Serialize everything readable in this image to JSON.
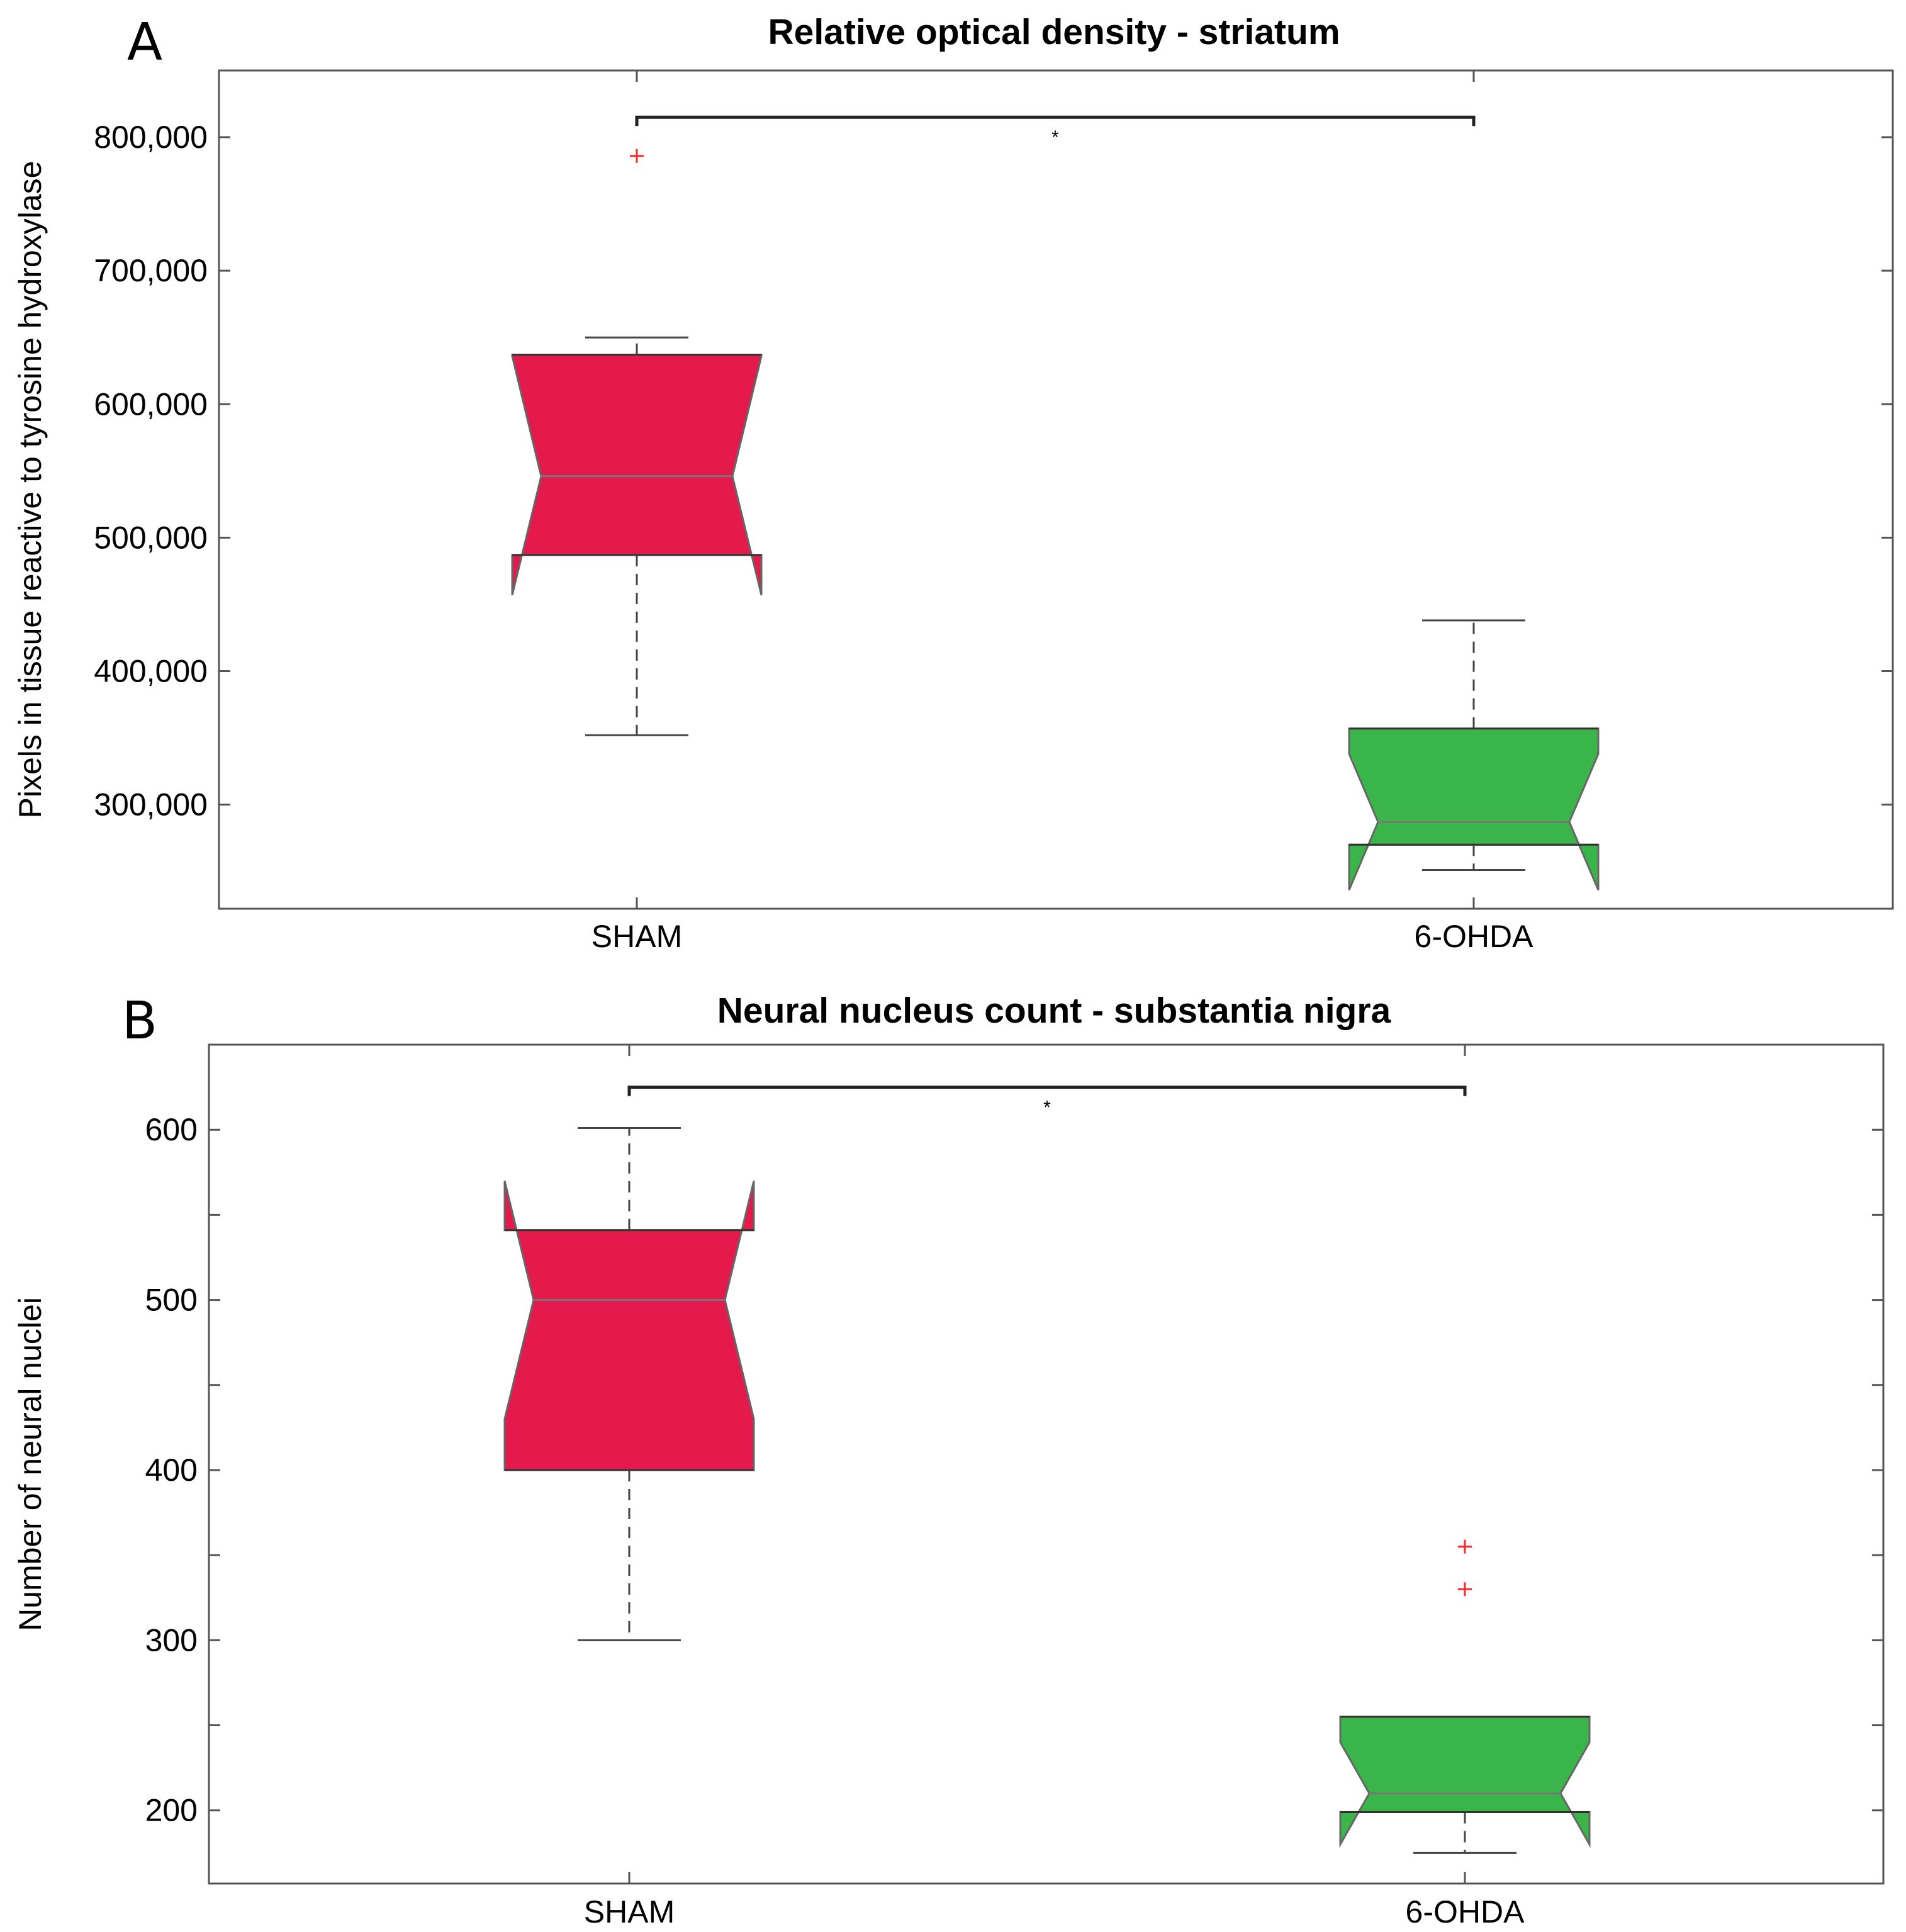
{
  "chart_data": [
    {
      "type": "box",
      "panel_label": "A",
      "title": "Relative optical density - striatum",
      "ylabel": "Pixels in tissue reactive to tyrosine hydroxylase",
      "xlabel": "",
      "ylim": [
        222000,
        850000
      ],
      "yticks": [
        300000,
        400000,
        500000,
        600000,
        700000,
        800000
      ],
      "ytick_labels": [
        "300,000",
        "400,000",
        "500,000",
        "600,000",
        "700,000",
        "800,000"
      ],
      "grid": false,
      "categories": [
        "SHAM",
        "6-OHDA"
      ],
      "boxes": [
        {
          "name": "SHAM",
          "color": "#e31a4b",
          "whisker_low": 352000,
          "q1": 487000,
          "notch_low": 457000,
          "median": 546000,
          "notch_high": 636000,
          "q3": 637000,
          "whisker_high": 650000,
          "outliers": [
            786000
          ]
        },
        {
          "name": "6-OHDA",
          "color": "#39b54a",
          "whisker_low": 251000,
          "q1": 270000,
          "notch_low": 236000,
          "median": 287000,
          "notch_high": 338000,
          "q3": 357000,
          "whisker_high": 438000,
          "outliers": []
        }
      ],
      "significance": {
        "from": "SHAM",
        "to": "6-OHDA",
        "label": "*",
        "y": 815000
      }
    },
    {
      "type": "box",
      "panel_label": "B",
      "title": "Neural nucleus count - substantia nigra",
      "ylabel": "Number of neural nuclei",
      "xlabel": "",
      "ylim": [
        157,
        650
      ],
      "yticks": [
        200,
        250,
        300,
        350,
        400,
        450,
        500,
        550,
        600
      ],
      "ytick_labels": [
        "200",
        "",
        "300",
        "",
        "400",
        "",
        "500",
        "",
        "600"
      ],
      "grid": false,
      "categories": [
        "SHAM",
        "6-OHDA"
      ],
      "boxes": [
        {
          "name": "SHAM",
          "color": "#e31a4b",
          "whisker_low": 300,
          "q1": 400,
          "notch_low": 430,
          "median": 500,
          "notch_high": 570,
          "q3": 541,
          "whisker_high": 601,
          "outliers": []
        },
        {
          "name": "6-OHDA",
          "color": "#39b54a",
          "whisker_low": 175,
          "q1": 199,
          "notch_low": 180,
          "median": 210,
          "notch_high": 240,
          "q3": 255,
          "whisker_high": 255,
          "outliers": [
            355,
            330
          ]
        }
      ],
      "significance": {
        "from": "SHAM",
        "to": "6-OHDA",
        "label": "*",
        "y": 625
      }
    }
  ]
}
